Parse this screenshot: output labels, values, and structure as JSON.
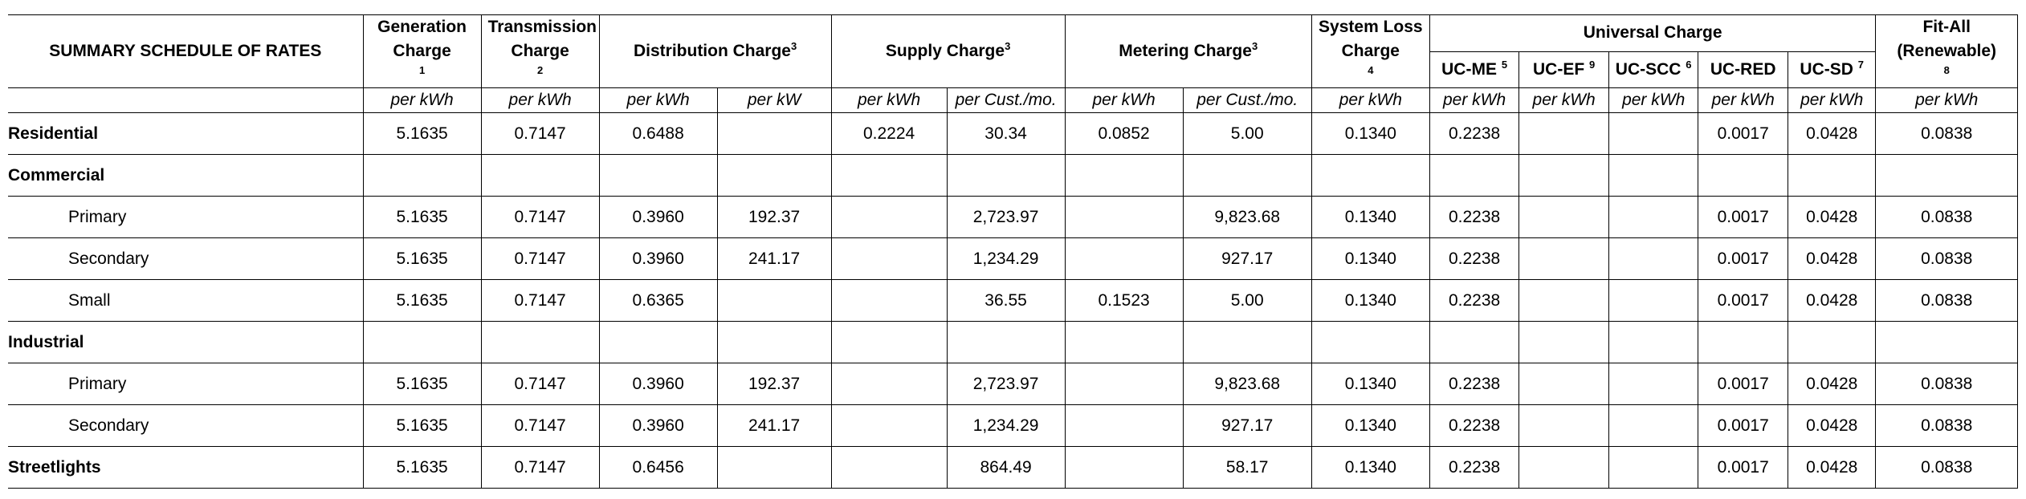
{
  "title": "SUMMARY SCHEDULE OF RATES",
  "headers": {
    "generation": {
      "label": "Generation Charge",
      "sup": "1"
    },
    "transmission": {
      "label": "Transmission Charge",
      "sup": "2"
    },
    "distribution": {
      "label": "Distribution Charge",
      "sup": "3"
    },
    "supply": {
      "label": "Supply Charge",
      "sup": "3"
    },
    "metering": {
      "label": "Metering Charge",
      "sup": "3"
    },
    "system_loss": {
      "label": "System Loss Charge",
      "sup": "4"
    },
    "universal": {
      "label": "Universal Charge"
    },
    "uc_me": {
      "label": "UC-ME",
      "sup": "5"
    },
    "uc_ef": {
      "label": "UC-EF",
      "sup": "9"
    },
    "uc_scc": {
      "label": "UC-SCC",
      "sup": "6"
    },
    "uc_red": {
      "label": "UC-RED"
    },
    "uc_sd": {
      "label": "UC-SD",
      "sup": "7"
    },
    "fit_all": {
      "label": "Fit-All (Renewable)",
      "sup": "8"
    }
  },
  "units": [
    "per kWh",
    "per kWh",
    "per kWh",
    "per kW",
    "per kWh",
    "per Cust./mo.",
    "per kWh",
    "per Cust./mo.",
    "per kWh",
    "per kWh",
    "per kWh",
    "per kWh",
    "per kWh",
    "per kWh",
    "per kWh"
  ],
  "rows": [
    {
      "label": "Residential",
      "style": "bold",
      "values": [
        "5.1635",
        "0.7147",
        "0.6488",
        "",
        "0.2224",
        "30.34",
        "0.0852",
        "5.00",
        "0.1340",
        "0.2238",
        "",
        "",
        "0.0017",
        "0.0428",
        "0.0838"
      ]
    },
    {
      "label": "Commercial",
      "style": "bold",
      "values": [
        "",
        "",
        "",
        "",
        "",
        "",
        "",
        "",
        "",
        "",
        "",
        "",
        "",
        "",
        ""
      ]
    },
    {
      "label": "Primary",
      "style": "indent",
      "values": [
        "5.1635",
        "0.7147",
        "0.3960",
        "192.37",
        "",
        "2,723.97",
        "",
        "9,823.68",
        "0.1340",
        "0.2238",
        "",
        "",
        "0.0017",
        "0.0428",
        "0.0838"
      ]
    },
    {
      "label": "Secondary",
      "style": "indent",
      "values": [
        "5.1635",
        "0.7147",
        "0.3960",
        "241.17",
        "",
        "1,234.29",
        "",
        "927.17",
        "0.1340",
        "0.2238",
        "",
        "",
        "0.0017",
        "0.0428",
        "0.0838"
      ]
    },
    {
      "label": "Small",
      "style": "indent",
      "values": [
        "5.1635",
        "0.7147",
        "0.6365",
        "",
        "",
        "36.55",
        "0.1523",
        "5.00",
        "0.1340",
        "0.2238",
        "",
        "",
        "0.0017",
        "0.0428",
        "0.0838"
      ]
    },
    {
      "label": "Industrial",
      "style": "bold",
      "values": [
        "",
        "",
        "",
        "",
        "",
        "",
        "",
        "",
        "",
        "",
        "",
        "",
        "",
        "",
        ""
      ]
    },
    {
      "label": "Primary",
      "style": "indent",
      "values": [
        "5.1635",
        "0.7147",
        "0.3960",
        "192.37",
        "",
        "2,723.97",
        "",
        "9,823.68",
        "0.1340",
        "0.2238",
        "",
        "",
        "0.0017",
        "0.0428",
        "0.0838"
      ]
    },
    {
      "label": "Secondary",
      "style": "indent",
      "values": [
        "5.1635",
        "0.7147",
        "0.3960",
        "241.17",
        "",
        "1,234.29",
        "",
        "927.17",
        "0.1340",
        "0.2238",
        "",
        "",
        "0.0017",
        "0.0428",
        "0.0838"
      ]
    },
    {
      "label": "Streetlights",
      "style": "bold",
      "values": [
        "5.1635",
        "0.7147",
        "0.6456",
        "",
        "",
        "864.49",
        "",
        "58.17",
        "0.1340",
        "0.2238",
        "",
        "",
        "0.0017",
        "0.0428",
        "0.0838"
      ]
    }
  ]
}
